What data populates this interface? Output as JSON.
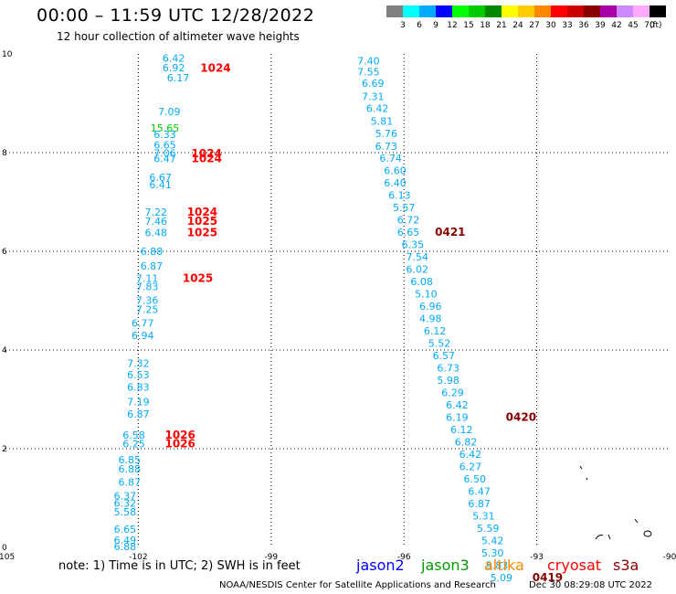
{
  "header": {
    "title": "00:00 – 11:59 UTC 12/28/2022",
    "subtitle": "12 hour collection of altimeter wave heights"
  },
  "legend": {
    "unit": "(ft)",
    "bins": [
      {
        "label": "3",
        "color": "#808080"
      },
      {
        "label": "6",
        "color": "#00ffff"
      },
      {
        "label": "9",
        "color": "#00aaff"
      },
      {
        "label": "12",
        "color": "#0000ff"
      },
      {
        "label": "15",
        "color": "#00ff00"
      },
      {
        "label": "18",
        "color": "#00cc00"
      },
      {
        "label": "21",
        "color": "#008800"
      },
      {
        "label": "24",
        "color": "#ffff00"
      },
      {
        "label": "27",
        "color": "#ffcc00"
      },
      {
        "label": "30",
        "color": "#ff8800"
      },
      {
        "label": "33",
        "color": "#ff0000"
      },
      {
        "label": "36",
        "color": "#cc0000"
      },
      {
        "label": "39",
        "color": "#880000"
      },
      {
        "label": "42",
        "color": "#aa00aa"
      },
      {
        "label": "45",
        "color": "#cc88ff"
      },
      {
        "label": "70",
        "color": "#ffaaff"
      },
      {
        "label": "",
        "color": "#000000"
      }
    ]
  },
  "footer": {
    "note": "note: 1) Time is in UTC; 2) SWH is in feet",
    "satellites": [
      {
        "name": "jason2",
        "color": "#0000ff"
      },
      {
        "name": "jason3",
        "color": "#009900"
      },
      {
        "name": "altika",
        "color": "#ff8800"
      },
      {
        "name": "cryosat",
        "color": "#ff0000"
      },
      {
        "name": "s3a",
        "color": "#880000"
      }
    ],
    "credit": "NOAA/NESDIS Center for Satellite Applications and Research",
    "timestamp": "Dec 30 08:29:08 UTC 2022"
  },
  "chart_data": {
    "type": "scatter",
    "xlim": [
      -105,
      -90
    ],
    "ylim": [
      0,
      10
    ],
    "x_ticks": [
      "-105",
      "-102",
      "-99",
      "-96",
      "-93",
      "-90"
    ],
    "y_ticks": [
      "0",
      "2",
      "4",
      "6",
      "8",
      "10"
    ],
    "grid": true,
    "colors": {
      "swh": "#00aaff",
      "swh_green": "#00cc00",
      "time_red": "#ff0000",
      "time_darkred": "#880000"
    },
    "series": [
      {
        "track": "west",
        "points": [
          {
            "x": -101.2,
            "y": 9.92,
            "label": "6.42",
            "kind": "swh"
          },
          {
            "x": -101.2,
            "y": 9.72,
            "label": "6.92",
            "kind": "swh"
          },
          {
            "x": -101.1,
            "y": 9.52,
            "label": "6.17",
            "kind": "swh"
          },
          {
            "x": -101.3,
            "y": 8.83,
            "label": "7.09",
            "kind": "swh"
          },
          {
            "x": -101.4,
            "y": 8.5,
            "label": "15.65",
            "kind": "swh_green"
          },
          {
            "x": -101.4,
            "y": 8.37,
            "label": "6.33",
            "kind": "swh"
          },
          {
            "x": -101.4,
            "y": 8.16,
            "label": "6.65",
            "kind": "swh"
          },
          {
            "x": -101.4,
            "y": 7.99,
            "label": "7.06",
            "kind": "swh"
          },
          {
            "x": -101.4,
            "y": 7.88,
            "label": "6.47",
            "kind": "swh"
          },
          {
            "x": -101.5,
            "y": 7.5,
            "label": "6.67",
            "kind": "swh"
          },
          {
            "x": -101.5,
            "y": 7.35,
            "label": "6.41",
            "kind": "swh"
          },
          {
            "x": -101.6,
            "y": 6.8,
            "label": "7.22",
            "kind": "swh"
          },
          {
            "x": -101.6,
            "y": 6.61,
            "label": "7.46",
            "kind": "swh"
          },
          {
            "x": -101.6,
            "y": 6.38,
            "label": "6.48",
            "kind": "swh"
          },
          {
            "x": -101.7,
            "y": 6.0,
            "label": "6.88",
            "kind": "swh"
          },
          {
            "x": -101.7,
            "y": 5.7,
            "label": "6.87",
            "kind": "swh"
          },
          {
            "x": -101.8,
            "y": 5.45,
            "label": "7.11",
            "kind": "swh"
          },
          {
            "x": -101.8,
            "y": 5.29,
            "label": "7.83",
            "kind": "swh"
          },
          {
            "x": -101.8,
            "y": 5.01,
            "label": "7.36",
            "kind": "swh"
          },
          {
            "x": -101.8,
            "y": 4.82,
            "label": "7.25",
            "kind": "swh"
          },
          {
            "x": -101.9,
            "y": 4.55,
            "label": "6.77",
            "kind": "swh"
          },
          {
            "x": -101.9,
            "y": 4.3,
            "label": "6.94",
            "kind": "swh"
          },
          {
            "x": -102.0,
            "y": 3.73,
            "label": "7.32",
            "kind": "swh"
          },
          {
            "x": -102.0,
            "y": 3.5,
            "label": "6.53",
            "kind": "swh"
          },
          {
            "x": -102.0,
            "y": 3.25,
            "label": "6.83",
            "kind": "swh"
          },
          {
            "x": -102.0,
            "y": 2.95,
            "label": "7.19",
            "kind": "swh"
          },
          {
            "x": -102.0,
            "y": 2.7,
            "label": "6.87",
            "kind": "swh"
          },
          {
            "x": -102.1,
            "y": 2.28,
            "label": "6.58",
            "kind": "swh"
          },
          {
            "x": -102.1,
            "y": 2.1,
            "label": "6.25",
            "kind": "swh"
          },
          {
            "x": -102.2,
            "y": 1.78,
            "label": "6.85",
            "kind": "swh"
          },
          {
            "x": -102.2,
            "y": 1.59,
            "label": "6.88",
            "kind": "swh"
          },
          {
            "x": -102.2,
            "y": 1.32,
            "label": "6.87",
            "kind": "swh"
          },
          {
            "x": -102.3,
            "y": 1.05,
            "label": "6.37",
            "kind": "swh"
          },
          {
            "x": -102.3,
            "y": 0.9,
            "label": "6.32",
            "kind": "swh"
          },
          {
            "x": -102.3,
            "y": 0.72,
            "label": "5.58",
            "kind": "swh"
          },
          {
            "x": -102.3,
            "y": 0.37,
            "label": "6.65",
            "kind": "swh"
          },
          {
            "x": -102.3,
            "y": 0.15,
            "label": "6.49",
            "kind": "swh"
          },
          {
            "x": -102.3,
            "y": 0.02,
            "label": "6.88",
            "kind": "swh"
          }
        ]
      },
      {
        "track": "east",
        "points": [
          {
            "x": -96.8,
            "y": 9.86,
            "label": "7.40",
            "kind": "swh"
          },
          {
            "x": -96.8,
            "y": 9.64,
            "label": "7.55",
            "kind": "swh"
          },
          {
            "x": -96.7,
            "y": 9.41,
            "label": "6.69",
            "kind": "swh"
          },
          {
            "x": -96.7,
            "y": 9.14,
            "label": "7.31",
            "kind": "swh"
          },
          {
            "x": -96.6,
            "y": 8.9,
            "label": "6.42",
            "kind": "swh"
          },
          {
            "x": -96.5,
            "y": 8.64,
            "label": "5.81",
            "kind": "swh"
          },
          {
            "x": -96.4,
            "y": 8.39,
            "label": "5.76",
            "kind": "swh"
          },
          {
            "x": -96.4,
            "y": 8.13,
            "label": "6.73",
            "kind": "swh"
          },
          {
            "x": -96.3,
            "y": 7.89,
            "label": "6.74",
            "kind": "swh"
          },
          {
            "x": -96.2,
            "y": 7.64,
            "label": "6.60",
            "kind": "swh"
          },
          {
            "x": -96.2,
            "y": 7.39,
            "label": "6.40",
            "kind": "swh"
          },
          {
            "x": -96.1,
            "y": 7.14,
            "label": "6.13",
            "kind": "swh"
          },
          {
            "x": -96.0,
            "y": 6.89,
            "label": "5.57",
            "kind": "swh"
          },
          {
            "x": -95.9,
            "y": 6.64,
            "label": "6.72",
            "kind": "swh"
          },
          {
            "x": -95.9,
            "y": 6.39,
            "label": "6.65",
            "kind": "swh"
          },
          {
            "x": -95.8,
            "y": 6.14,
            "label": "6.35",
            "kind": "swh"
          },
          {
            "x": -95.7,
            "y": 5.89,
            "label": "7.54",
            "kind": "swh"
          },
          {
            "x": -95.7,
            "y": 5.64,
            "label": "6.02",
            "kind": "swh"
          },
          {
            "x": -95.6,
            "y": 5.39,
            "label": "6.08",
            "kind": "swh"
          },
          {
            "x": -95.5,
            "y": 5.14,
            "label": "5.10",
            "kind": "swh"
          },
          {
            "x": -95.4,
            "y": 4.89,
            "label": "6.96",
            "kind": "swh"
          },
          {
            "x": -95.4,
            "y": 4.64,
            "label": "4.98",
            "kind": "swh"
          },
          {
            "x": -95.3,
            "y": 4.39,
            "label": "6.12",
            "kind": "swh"
          },
          {
            "x": -95.2,
            "y": 4.14,
            "label": "5.52",
            "kind": "swh"
          },
          {
            "x": -95.1,
            "y": 3.89,
            "label": "6.57",
            "kind": "swh"
          },
          {
            "x": -95.0,
            "y": 3.64,
            "label": "6.73",
            "kind": "swh"
          },
          {
            "x": -95.0,
            "y": 3.39,
            "label": "5.98",
            "kind": "swh"
          },
          {
            "x": -94.9,
            "y": 3.14,
            "label": "6.29",
            "kind": "swh"
          },
          {
            "x": -94.8,
            "y": 2.89,
            "label": "6.42",
            "kind": "swh"
          },
          {
            "x": -94.8,
            "y": 2.64,
            "label": "6.19",
            "kind": "swh"
          },
          {
            "x": -94.7,
            "y": 2.39,
            "label": "6.12",
            "kind": "swh"
          },
          {
            "x": -94.6,
            "y": 2.14,
            "label": "6.82",
            "kind": "swh"
          },
          {
            "x": -94.5,
            "y": 1.89,
            "label": "6.42",
            "kind": "swh"
          },
          {
            "x": -94.5,
            "y": 1.64,
            "label": "6.27",
            "kind": "swh"
          },
          {
            "x": -94.4,
            "y": 1.39,
            "label": "6.50",
            "kind": "swh"
          },
          {
            "x": -94.3,
            "y": 1.14,
            "label": "6.47",
            "kind": "swh"
          },
          {
            "x": -94.3,
            "y": 0.89,
            "label": "6.87",
            "kind": "swh"
          },
          {
            "x": -94.2,
            "y": 0.64,
            "label": "5.31",
            "kind": "swh"
          },
          {
            "x": -94.1,
            "y": 0.39,
            "label": "5.59",
            "kind": "swh"
          },
          {
            "x": -94.0,
            "y": 0.14,
            "label": "5.42",
            "kind": "swh"
          },
          {
            "x": -94.0,
            "y": -0.11,
            "label": "5.30",
            "kind": "swh"
          },
          {
            "x": -93.9,
            "y": -0.36,
            "label": "5.83",
            "kind": "swh"
          },
          {
            "x": -93.8,
            "y": -0.61,
            "label": "5.09",
            "kind": "swh"
          }
        ]
      }
    ],
    "time_labels": [
      {
        "x": -100.6,
        "y": 9.71,
        "label": "1024",
        "kind": "time_red"
      },
      {
        "x": -100.8,
        "y": 7.98,
        "label": "1024",
        "kind": "time_red"
      },
      {
        "x": -100.8,
        "y": 7.88,
        "label": "1024",
        "kind": "time_red"
      },
      {
        "x": -100.9,
        "y": 6.8,
        "label": "1024",
        "kind": "time_red"
      },
      {
        "x": -100.9,
        "y": 6.61,
        "label": "1025",
        "kind": "time_red"
      },
      {
        "x": -100.9,
        "y": 6.38,
        "label": "1025",
        "kind": "time_red"
      },
      {
        "x": -101.0,
        "y": 5.45,
        "label": "1025",
        "kind": "time_red"
      },
      {
        "x": -101.4,
        "y": 2.28,
        "label": "1026",
        "kind": "time_red"
      },
      {
        "x": -101.4,
        "y": 2.1,
        "label": "1026",
        "kind": "time_red"
      },
      {
        "x": -95.3,
        "y": 6.39,
        "label": "0421",
        "kind": "time_darkred"
      },
      {
        "x": -93.7,
        "y": 2.64,
        "label": "0420",
        "kind": "time_darkred"
      },
      {
        "x": -93.1,
        "y": -0.61,
        "label": "0419",
        "kind": "time_darkred"
      }
    ]
  }
}
